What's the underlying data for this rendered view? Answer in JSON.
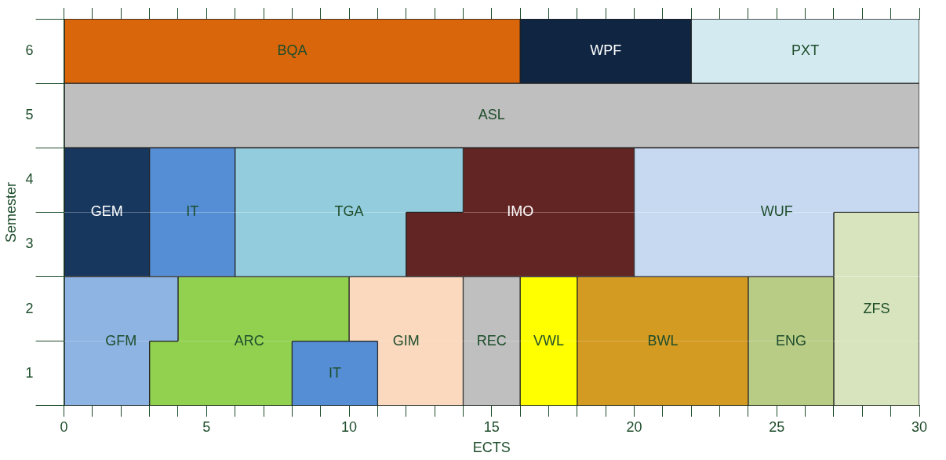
{
  "chart_data": {
    "type": "bar",
    "orientation": "horizontal",
    "xlabel": "ECTS",
    "ylabel": "Semester",
    "categories": [
      "6",
      "5",
      "4",
      "3",
      "2",
      "1"
    ],
    "xlim": [
      0,
      30
    ],
    "xticks": [
      0,
      {
        "value": 1,
        "label": null
      },
      {
        "value": 2,
        "label": null
      },
      {
        "value": 3,
        "label": null
      },
      {
        "value": 4,
        "label": null
      },
      5,
      {
        "value": 6,
        "label": null
      },
      {
        "value": 7,
        "label": null
      },
      {
        "value": 8,
        "label": null
      },
      {
        "value": 9,
        "label": null
      },
      10,
      {
        "value": 11,
        "label": null
      },
      {
        "value": 12,
        "label": null
      },
      {
        "value": 13,
        "label": null
      },
      {
        "value": 14,
        "label": null
      },
      15,
      {
        "value": 16,
        "label": null
      },
      {
        "value": 17,
        "label": null
      },
      {
        "value": 18,
        "label": null
      },
      {
        "value": 19,
        "label": null
      },
      20,
      {
        "value": 21,
        "label": null
      },
      {
        "value": 22,
        "label": null
      },
      {
        "value": 23,
        "label": null
      },
      {
        "value": 24,
        "label": null
      },
      25,
      {
        "value": 26,
        "label": null
      },
      {
        "value": 27,
        "label": null
      },
      {
        "value": 28,
        "label": null
      },
      {
        "value": 29,
        "label": null
      },
      30
    ],
    "legend": false,
    "series": [
      {
        "name": "BQA",
        "color": "#d9660b",
        "base": [
          0,
          null,
          null,
          null,
          null,
          null
        ],
        "values": [
          16,
          null,
          null,
          null,
          null,
          null
        ]
      },
      {
        "name": "WPF",
        "color": "#0f2542",
        "base": [
          16,
          null,
          null,
          null,
          null,
          null
        ],
        "values": [
          6,
          null,
          null,
          null,
          null,
          null
        ]
      },
      {
        "name": "PXT",
        "color": "#d3eaf0",
        "base": [
          22,
          null,
          null,
          null,
          null,
          null
        ],
        "values": [
          8,
          null,
          null,
          null,
          null,
          null
        ]
      },
      {
        "name": "ASL",
        "color": "#bfbfbf",
        "base": [
          null,
          0,
          null,
          null,
          null,
          null
        ],
        "values": [
          null,
          30,
          null,
          null,
          null,
          null
        ]
      },
      {
        "name": "GEM",
        "color": "#17375e",
        "base": [
          null,
          null,
          0,
          0,
          null,
          null
        ],
        "values": [
          null,
          null,
          3,
          3,
          null,
          null
        ]
      },
      {
        "name": "IT",
        "color": "#558ed5",
        "base": [
          null,
          null,
          3,
          3,
          null,
          null
        ],
        "values": [
          null,
          null,
          3,
          3,
          null,
          null
        ]
      },
      {
        "name": "TGA",
        "color": "#93cddd",
        "base": [
          null,
          null,
          6,
          6,
          null,
          null
        ],
        "values": [
          null,
          null,
          8,
          6,
          null,
          null
        ]
      },
      {
        "name": "IMO",
        "color": "#632523",
        "base": [
          null,
          null,
          14,
          12,
          null,
          null
        ],
        "values": [
          null,
          null,
          6,
          8,
          null,
          null
        ]
      },
      {
        "name": "WUF",
        "color": "#c6d9f1",
        "base": [
          null,
          null,
          20,
          20,
          null,
          null
        ],
        "values": [
          null,
          null,
          10,
          7,
          null,
          null
        ]
      },
      {
        "name": "GFM",
        "color": "#8eb4e3",
        "base": [
          null,
          null,
          null,
          null,
          0,
          0
        ],
        "values": [
          null,
          null,
          null,
          null,
          4,
          3
        ]
      },
      {
        "name": "ARC",
        "color": "#92d050",
        "base": [
          null,
          null,
          null,
          null,
          4,
          3
        ],
        "values": [
          null,
          null,
          null,
          null,
          6,
          5
        ]
      },
      {
        "name": "IT",
        "color": "#558ed5",
        "base": [
          null,
          null,
          null,
          null,
          null,
          8
        ],
        "values": [
          null,
          null,
          null,
          null,
          null,
          3
        ]
      },
      {
        "name": "GIM",
        "color": "#fad9be",
        "base": [
          null,
          null,
          null,
          null,
          10,
          11
        ],
        "values": [
          null,
          null,
          null,
          null,
          4,
          3
        ]
      },
      {
        "name": "REC",
        "color": "#bfbfbf",
        "base": [
          null,
          null,
          null,
          null,
          14,
          14
        ],
        "values": [
          null,
          null,
          null,
          null,
          2,
          2
        ]
      },
      {
        "name": "VWL",
        "color": "#ffff00",
        "base": [
          null,
          null,
          null,
          null,
          16,
          16
        ],
        "values": [
          null,
          null,
          null,
          null,
          2,
          2
        ]
      },
      {
        "name": "BWL",
        "color": "#d49b22",
        "base": [
          null,
          null,
          null,
          null,
          18,
          18
        ],
        "values": [
          null,
          null,
          null,
          null,
          6,
          6
        ]
      },
      {
        "name": "ENG",
        "color": "#b8cc86",
        "base": [
          null,
          null,
          null,
          null,
          24,
          24
        ],
        "values": [
          null,
          null,
          null,
          null,
          3,
          3
        ]
      },
      {
        "name": "ZFS",
        "color": "#d7e4bd",
        "base": [
          null,
          null,
          null,
          27,
          27,
          27
        ],
        "values": [
          null,
          null,
          null,
          3,
          3,
          3
        ]
      }
    ]
  }
}
